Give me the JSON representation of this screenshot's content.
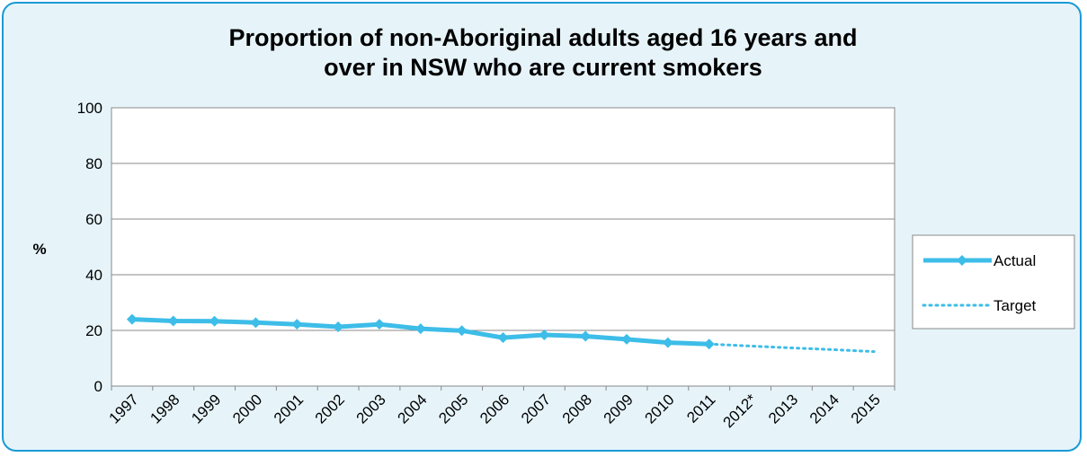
{
  "chart_data": {
    "type": "line",
    "title_lines": [
      "Proportion of non-Aboriginal  adults aged 16 years and",
      "over in NSW who are current smokers"
    ],
    "ylabel": "%",
    "xlabel": "",
    "ylim": [
      0,
      100
    ],
    "yticks": [
      0,
      20,
      40,
      60,
      80,
      100
    ],
    "categories": [
      "1997",
      "1998",
      "1999",
      "2000",
      "2001",
      "2002",
      "2003",
      "2004",
      "2005",
      "2006",
      "2007",
      "2008",
      "2009",
      "2010",
      "2011",
      "2012*",
      "2013",
      "2014",
      "2015"
    ],
    "series": [
      {
        "name": "Actual",
        "style": "solid-diamond",
        "color": "#3dbde8",
        "values": [
          24.0,
          23.4,
          23.3,
          22.8,
          22.2,
          21.3,
          22.2,
          20.6,
          19.9,
          17.4,
          18.4,
          17.9,
          16.8,
          15.6,
          15.1,
          null,
          null,
          null,
          null
        ]
      },
      {
        "name": "Target",
        "style": "dotted",
        "color": "#3dbde8",
        "values": [
          null,
          null,
          null,
          null,
          null,
          null,
          null,
          null,
          null,
          null,
          null,
          null,
          null,
          null,
          15.1,
          14.4,
          13.7,
          13.1,
          12.4
        ]
      }
    ],
    "grid": true,
    "legend_position": "right"
  },
  "colors": {
    "frame_border": "#1a9ad6",
    "frame_background": "#e6f4fa",
    "plot_background": "#ffffff",
    "gridline": "#888888"
  }
}
